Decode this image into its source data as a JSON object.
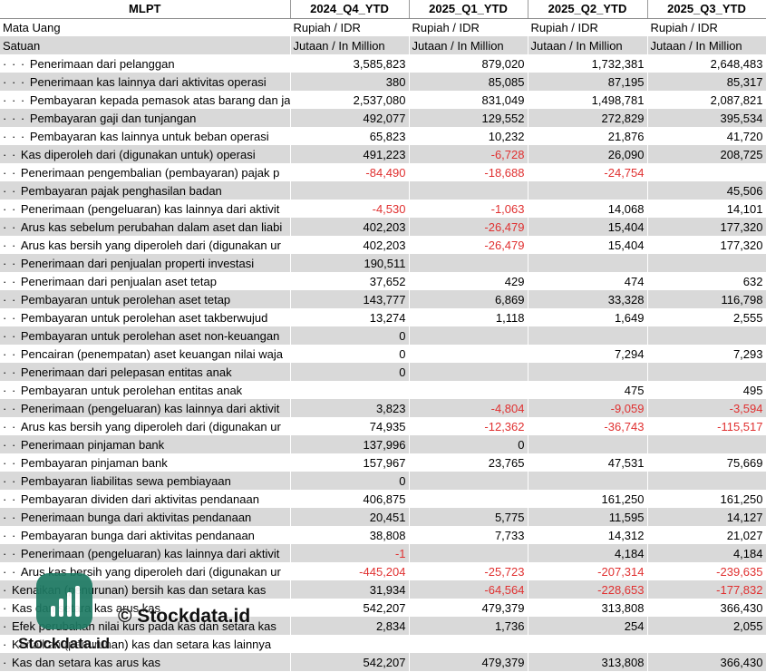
{
  "header": {
    "ticker": "MLPT",
    "periods": [
      "2024_Q4_YTD",
      "2025_Q1_YTD",
      "2025_Q2_YTD",
      "2025_Q3_YTD"
    ]
  },
  "meta_rows": [
    {
      "label": "Mata Uang",
      "values": [
        "Rupiah / IDR",
        "Rupiah / IDR",
        "Rupiah / IDR",
        "Rupiah / IDR"
      ]
    },
    {
      "label": "Satuan",
      "values": [
        "Jutaan / In Million",
        "Jutaan / In Million",
        "Jutaan / In Million",
        "Jutaan / In Million"
      ]
    }
  ],
  "rows": [
    {
      "dots": "· · · ",
      "label": "Penerimaan dari pelanggan",
      "values": [
        "3,585,823",
        "879,020",
        "1,732,381",
        "2,648,483"
      ]
    },
    {
      "dots": "· · · ",
      "label": "Penerimaan kas lainnya dari aktivitas operasi",
      "values": [
        "380",
        "85,085",
        "87,195",
        "85,317"
      ]
    },
    {
      "dots": "· · · ",
      "label": "Pembayaran kepada pemasok atas barang dan ja",
      "values": [
        "2,537,080",
        "831,049",
        "1,498,781",
        "2,087,821"
      ]
    },
    {
      "dots": "· · · ",
      "label": "Pembayaran gaji dan tunjangan",
      "values": [
        "492,077",
        "129,552",
        "272,829",
        "395,534"
      ]
    },
    {
      "dots": "· · · ",
      "label": "Pembayaran kas lainnya untuk beban operasi",
      "values": [
        "65,823",
        "10,232",
        "21,876",
        "41,720"
      ]
    },
    {
      "dots": "· · ",
      "label": "Kas diperoleh dari (digunakan untuk) operasi",
      "values": [
        "491,223",
        "-6,728",
        "26,090",
        "208,725"
      ]
    },
    {
      "dots": "· · ",
      "label": "Penerimaan pengembalian (pembayaran) pajak p",
      "values": [
        "-84,490",
        "-18,688",
        "-24,754",
        ""
      ]
    },
    {
      "dots": "· · ",
      "label": "Pembayaran pajak penghasilan badan",
      "values": [
        "",
        "",
        "",
        "45,506"
      ]
    },
    {
      "dots": "· · ",
      "label": "Penerimaan (pengeluaran) kas lainnya dari aktivit",
      "values": [
        "-4,530",
        "-1,063",
        "14,068",
        "14,101"
      ]
    },
    {
      "dots": "· · ",
      "label": "Arus kas sebelum perubahan dalam aset dan liabi",
      "values": [
        "402,203",
        "-26,479",
        "15,404",
        "177,320"
      ]
    },
    {
      "dots": "· · ",
      "label": "Arus kas bersih yang diperoleh dari (digunakan ur",
      "values": [
        "402,203",
        "-26,479",
        "15,404",
        "177,320"
      ]
    },
    {
      "dots": "· · ",
      "label": "Penerimaan dari penjualan properti investasi",
      "values": [
        "190,511",
        "",
        "",
        ""
      ]
    },
    {
      "dots": "· · ",
      "label": "Penerimaan dari penjualan aset tetap",
      "values": [
        "37,652",
        "429",
        "474",
        "632"
      ]
    },
    {
      "dots": "· · ",
      "label": "Pembayaran untuk perolehan aset tetap",
      "values": [
        "143,777",
        "6,869",
        "33,328",
        "116,798"
      ]
    },
    {
      "dots": "· · ",
      "label": "Pembayaran untuk perolehan aset takberwujud",
      "values": [
        "13,274",
        "1,118",
        "1,649",
        "2,555"
      ]
    },
    {
      "dots": "· · ",
      "label": "Pembayaran untuk perolehan aset non-keuangan",
      "values": [
        "0",
        "",
        "",
        ""
      ]
    },
    {
      "dots": "· · ",
      "label": "Pencairan (penempatan) aset keuangan nilai waja",
      "values": [
        "0",
        "",
        "7,294",
        "7,293"
      ]
    },
    {
      "dots": "· · ",
      "label": "Penerimaan dari pelepasan entitas anak",
      "values": [
        "0",
        "",
        "",
        ""
      ]
    },
    {
      "dots": "· · ",
      "label": "Pembayaran untuk perolehan entitas anak",
      "values": [
        "",
        "",
        "475",
        "495"
      ]
    },
    {
      "dots": "· · ",
      "label": "Penerimaan (pengeluaran) kas lainnya dari aktivit",
      "values": [
        "3,823",
        "-4,804",
        "-9,059",
        "-3,594"
      ]
    },
    {
      "dots": "· · ",
      "label": "Arus kas bersih yang diperoleh dari (digunakan ur",
      "values": [
        "74,935",
        "-12,362",
        "-36,743",
        "-115,517"
      ]
    },
    {
      "dots": "· · ",
      "label": "Penerimaan pinjaman bank",
      "values": [
        "137,996",
        "0",
        "",
        ""
      ]
    },
    {
      "dots": "· · ",
      "label": "Pembayaran pinjaman bank",
      "values": [
        "157,967",
        "23,765",
        "47,531",
        "75,669"
      ]
    },
    {
      "dots": "· · ",
      "label": "Pembayaran liabilitas sewa pembiayaan",
      "values": [
        "0",
        "",
        "",
        ""
      ]
    },
    {
      "dots": "· · ",
      "label": "Pembayaran dividen dari aktivitas pendanaan",
      "values": [
        "406,875",
        "",
        "161,250",
        "161,250"
      ]
    },
    {
      "dots": "· · ",
      "label": "Penerimaan bunga dari aktivitas pendanaan",
      "values": [
        "20,451",
        "5,775",
        "11,595",
        "14,127"
      ]
    },
    {
      "dots": "· · ",
      "label": "Pembayaran bunga dari aktivitas pendanaan",
      "values": [
        "38,808",
        "7,733",
        "14,312",
        "21,027"
      ]
    },
    {
      "dots": "· · ",
      "label": "Penerimaan (pengeluaran) kas lainnya dari aktivit",
      "values": [
        "-1",
        "",
        "4,184",
        "4,184"
      ]
    },
    {
      "dots": "· · ",
      "label": "Arus kas bersih yang diperoleh dari (digunakan ur",
      "values": [
        "-445,204",
        "-25,723",
        "-207,314",
        "-239,635"
      ]
    },
    {
      "dots": "· ",
      "label": "Kenaikan (penurunan) bersih kas dan setara kas",
      "values": [
        "31,934",
        "-64,564",
        "-228,653",
        "-177,832"
      ]
    },
    {
      "dots": "· ",
      "label": "Kas dan setara kas arus kas",
      "values": [
        "542,207",
        "479,379",
        "313,808",
        "366,430"
      ]
    },
    {
      "dots": "· ",
      "label": "Efek perubahan nilai kurs pada kas dan setara kas",
      "values": [
        "2,834",
        "1,736",
        "254",
        "2,055"
      ]
    },
    {
      "dots": "· ",
      "label": "Kenaikan (penurunan) kas dan setara kas lainnya",
      "values": [
        "",
        "",
        "",
        ""
      ]
    },
    {
      "dots": "· ",
      "label": "Kas dan setara kas arus kas",
      "values": [
        "542,207",
        "479,379",
        "313,808",
        "366,430"
      ]
    }
  ],
  "watermark": {
    "mark": "© Stockdata.id",
    "brand": "Stockdata.id",
    "logo_color": "#1e7a63",
    "logo_icon": "bar-chart-icon"
  },
  "colors": {
    "negative": "#e03030",
    "stripe": "#d9d9d9"
  }
}
